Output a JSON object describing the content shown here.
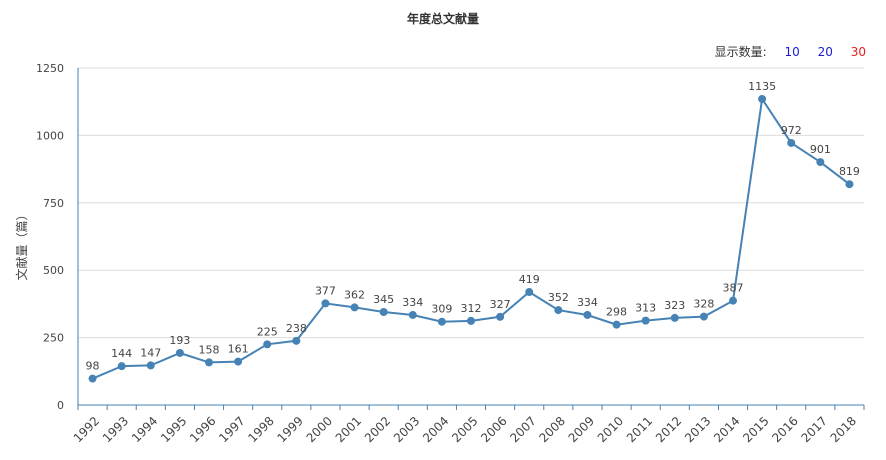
{
  "selector": {
    "label": "显示数量:",
    "options": [
      {
        "label": "10",
        "color": "#1a1ad4"
      },
      {
        "label": "20",
        "color": "#1a1ad4"
      },
      {
        "label": "30",
        "color": "#e02020"
      }
    ]
  },
  "chart_data": {
    "type": "line",
    "title": "年度总文献量",
    "ylabel": "文献量（篇）",
    "xlabel": "",
    "ylim": [
      0,
      1250
    ],
    "yticks": [
      0,
      250,
      500,
      750,
      1000,
      1250
    ],
    "grid": true,
    "legend": "none",
    "line_color": "#4682b4",
    "x": [
      "1992",
      "1993",
      "1994",
      "1995",
      "1996",
      "1997",
      "1998",
      "1999",
      "2000",
      "2001",
      "2002",
      "2003",
      "2004",
      "2005",
      "2006",
      "2007",
      "2008",
      "2009",
      "2010",
      "2011",
      "2012",
      "2013",
      "2014",
      "2015",
      "2016",
      "2017",
      "2018"
    ],
    "values": [
      98,
      144,
      147,
      193,
      158,
      161,
      225,
      238,
      377,
      362,
      345,
      334,
      309,
      312,
      327,
      419,
      352,
      334,
      298,
      313,
      323,
      328,
      387,
      1135,
      972,
      901,
      819
    ]
  }
}
